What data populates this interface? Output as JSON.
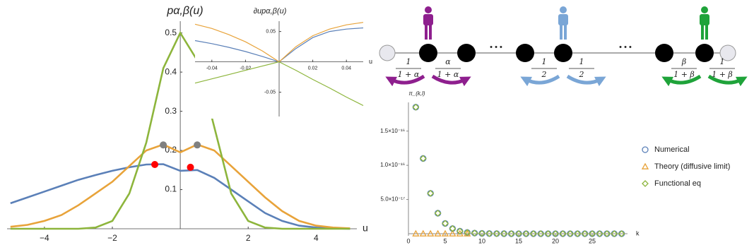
{
  "chart_data": [
    {
      "type": "line",
      "title": "pα,β(u)",
      "x_label": "u",
      "x": [
        -5,
        -4.5,
        -4,
        -3.5,
        -3,
        -2.5,
        -2,
        -1.5,
        -1,
        -0.5,
        0,
        0.5,
        1,
        1.5,
        2,
        2.5,
        3,
        3.5,
        4,
        4.5,
        5
      ],
      "series": [
        {
          "color": "#5b80b8",
          "values": [
            0.065,
            0.08,
            0.095,
            0.11,
            0.125,
            0.137,
            0.148,
            0.157,
            0.164,
            0.165,
            0.148,
            0.15,
            0.13,
            0.1,
            0.07,
            0.04,
            0.02,
            0.008,
            0.003,
            0.001,
            0
          ]
        },
        {
          "color": "#e8a33a",
          "values": [
            0.005,
            0.01,
            0.02,
            0.035,
            0.06,
            0.09,
            0.12,
            0.16,
            0.2,
            0.215,
            0.195,
            0.215,
            0.2,
            0.16,
            0.12,
            0.08,
            0.045,
            0.02,
            0.008,
            0.003,
            0.001
          ]
        },
        {
          "color": "#8db53c",
          "values": [
            0,
            0,
            0,
            0,
            0,
            0.003,
            0.02,
            0.09,
            0.22,
            0.41,
            0.5,
            0.43,
            0.26,
            0.09,
            0.02,
            0.003,
            0,
            0,
            0,
            0,
            0
          ]
        }
      ],
      "points": [
        {
          "color": "#808080",
          "x": [
            -0.5,
            0.5
          ],
          "values": [
            0.214,
            0.214
          ]
        },
        {
          "color": "#ff0000",
          "x": [
            -0.75,
            0.3
          ],
          "values": [
            0.164,
            0.157
          ]
        }
      ],
      "xlim": [
        -5.1,
        5.2
      ],
      "ylim": [
        0,
        0.53
      ],
      "xticks": [
        {
          "value": -4,
          "label": "−4"
        },
        {
          "value": -2,
          "label": "−2"
        },
        2,
        4
      ],
      "yticks": [
        0.1,
        0.2,
        0.3,
        0.4,
        0.5
      ]
    },
    {
      "type": "line",
      "title": "∂upα,β(u)",
      "x_label": "u",
      "x": [
        -0.05,
        -0.04,
        -0.03,
        -0.02,
        -0.01,
        0,
        0.01,
        0.02,
        0.03,
        0.04,
        0.05
      ],
      "series": [
        {
          "color": "#5b80b8",
          "values": [
            0.035,
            0.03,
            0.024,
            0.017,
            0.009,
            0,
            0.022,
            0.04,
            0.05,
            0.054,
            0.056
          ]
        },
        {
          "color": "#e8a33a",
          "values": [
            0.062,
            0.055,
            0.045,
            0.033,
            0.018,
            0,
            0.025,
            0.043,
            0.054,
            0.061,
            0.065
          ]
        },
        {
          "color": "#8db53c",
          "values": [
            -0.035,
            -0.028,
            -0.021,
            -0.014,
            -0.007,
            0,
            -0.014,
            -0.029,
            -0.043,
            -0.058,
            -0.072
          ]
        }
      ],
      "xlim": [
        -0.05,
        0.05
      ],
      "ylim": [
        -0.09,
        0.067
      ],
      "xticks": [
        -0.04,
        -0.02,
        0.02,
        0.04
      ],
      "yticks": [
        -0.05,
        0.05
      ]
    },
    {
      "type": "scatter",
      "title": "π_(k,l)",
      "x_label": "k",
      "legend": "right",
      "series": [
        {
          "name": "Numerical",
          "color": "#5b80b8",
          "marker": "circle",
          "x": [
            1,
            2,
            3,
            4,
            5,
            6,
            7,
            8,
            9,
            10,
            11,
            12,
            13,
            14,
            15,
            16,
            17,
            18,
            19,
            20,
            21,
            22,
            23,
            24,
            25,
            26,
            27,
            28,
            29
          ],
          "values": [
            1.85e-16,
            1.1e-16,
            5.9e-17,
            3e-17,
            1.5e-17,
            7.5e-18,
            3.7e-18,
            1.8e-18,
            9e-19,
            4.5e-19,
            2.2e-19,
            1.1e-19,
            5.5e-20,
            2.7e-20,
            1.4e-20,
            7e-21,
            3.5e-21,
            1.7e-21,
            8.5e-22,
            4.3e-22,
            2.1e-22,
            1.1e-22,
            5.3e-23,
            2.7e-23,
            1.3e-23,
            6.7e-24,
            3.3e-24,
            1.7e-24,
            8.3e-25
          ]
        },
        {
          "name": "Theory (diffusive limit)",
          "color": "#e8a33a",
          "marker": "triangle",
          "x": [
            1,
            2,
            3,
            4,
            5,
            6,
            7,
            8
          ],
          "values": [
            0,
            0,
            0,
            0,
            0,
            0,
            0,
            0
          ]
        },
        {
          "name": "Functional eq",
          "color": "#8db53c",
          "marker": "diamond",
          "x": [
            1,
            2,
            3,
            4,
            5,
            6,
            7,
            8,
            9,
            10,
            11,
            12,
            13,
            14,
            15,
            16,
            17,
            18,
            19,
            20,
            21,
            22,
            23,
            24,
            25,
            26,
            27,
            28,
            29
          ],
          "values": [
            1.85e-16,
            1.1e-16,
            5.9e-17,
            3e-17,
            1.5e-17,
            7.5e-18,
            3.7e-18,
            1.8e-18,
            9e-19,
            4.5e-19,
            2.2e-19,
            1.1e-19,
            5.5e-20,
            2.7e-20,
            1.4e-20,
            7e-21,
            3.5e-21,
            1.7e-21,
            8.5e-22,
            4.3e-22,
            2.1e-22,
            1.1e-22,
            5.3e-23,
            2.7e-23,
            1.3e-23,
            6.7e-24,
            3.3e-24,
            1.7e-24,
            8.3e-25
          ]
        }
      ],
      "xlim": [
        0,
        29.8
      ],
      "ylim": [
        0,
        1.92e-16
      ],
      "xticks": [
        0,
        5,
        10,
        15,
        20,
        25
      ],
      "yticks": [
        {
          "value": 5e-17,
          "label": "5.0×10⁻¹⁷"
        },
        {
          "value": 1e-16,
          "label": "1.0×10⁻¹⁶"
        },
        {
          "value": 1.5e-16,
          "label": "1.5×10⁻¹⁶"
        }
      ]
    }
  ],
  "diagram": {
    "fractions": [
      {
        "numerator": "1",
        "denominator": "1 + α"
      },
      {
        "numerator": "α",
        "denominator": "1 + α"
      },
      {
        "numerator": "1",
        "denominator": "2"
      },
      {
        "numerator": "1",
        "denominator": "2"
      },
      {
        "numerator": "β",
        "denominator": "1 + β"
      },
      {
        "numerator": "1",
        "denominator": "1 + β"
      }
    ],
    "ellipses": [
      "• • •",
      "• • •"
    ]
  }
}
